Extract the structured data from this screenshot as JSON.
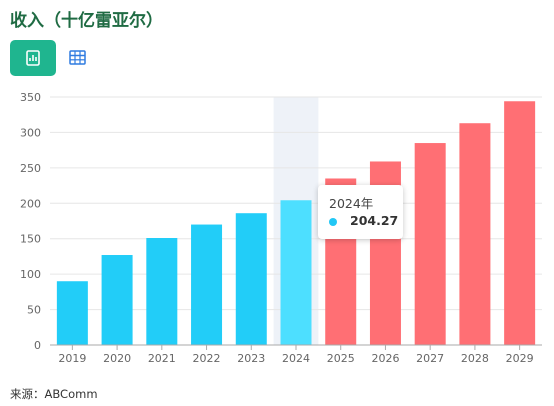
{
  "title": "收入（十亿雷亚尔）",
  "buttons": {
    "chart_icon": "chart-icon",
    "table_icon": "table-icon"
  },
  "source": "来源：ABComm",
  "tooltip": {
    "label": "2024年",
    "value": "204.27"
  },
  "colors": {
    "historical": "#22cdf8",
    "highlight": "#4ddfff",
    "forecast": "#ff6f74",
    "band": "#eef2f8",
    "grid": "#e6e6e6",
    "accent": "#1fb58f"
  },
  "chart_data": {
    "type": "bar",
    "categories": [
      "2019",
      "2020",
      "2021",
      "2022",
      "2023",
      "2024",
      "2025",
      "2026",
      "2027",
      "2028",
      "2029"
    ],
    "values": [
      90,
      127,
      151,
      170,
      186,
      204.27,
      235,
      259,
      285,
      313,
      344
    ],
    "forecast_from_index": 6,
    "highlight_index": 5,
    "ylim": [
      0,
      350
    ],
    "yticks": [
      0,
      50,
      100,
      150,
      200,
      250,
      300,
      350
    ],
    "grid": true,
    "title": "收入（十亿雷亚尔）",
    "xlabel": "",
    "ylabel": ""
  }
}
